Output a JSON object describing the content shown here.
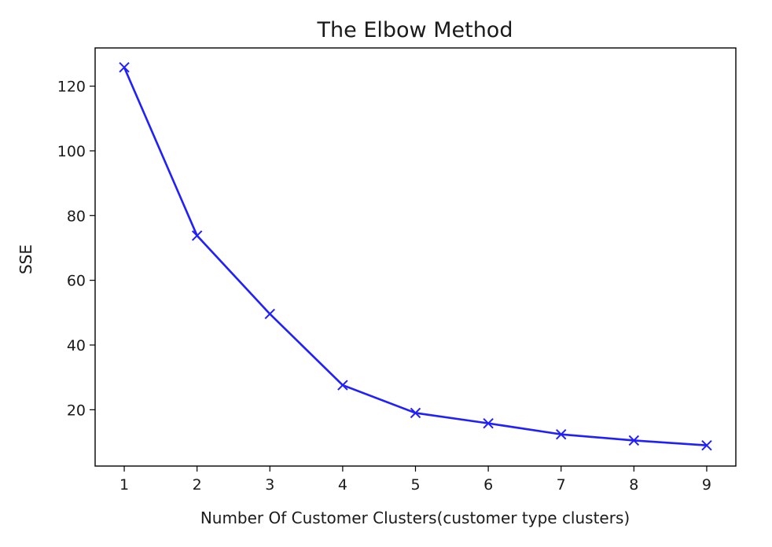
{
  "chart_data": {
    "type": "line",
    "title": "The Elbow Method",
    "xlabel": "Number Of Customer Clusters(customer type clusters)",
    "ylabel": "SSE",
    "x": [
      1,
      2,
      3,
      4,
      5,
      6,
      7,
      8,
      9
    ],
    "xticks": [
      "1",
      "2",
      "3",
      "4",
      "5",
      "6",
      "7",
      "8",
      "9"
    ],
    "yticks": [
      "20",
      "40",
      "60",
      "80",
      "100",
      "120"
    ],
    "xlim": [
      0.6,
      9.4
    ],
    "ylim": [
      2.6,
      131.8
    ],
    "series": [
      {
        "values": [
          125.8,
          73.8,
          49.6,
          27.6,
          19.0,
          15.8,
          12.4,
          10.5,
          9.0
        ],
        "color": "#1f1fff",
        "marker": "x"
      }
    ],
    "grid": false,
    "legend": "none"
  }
}
